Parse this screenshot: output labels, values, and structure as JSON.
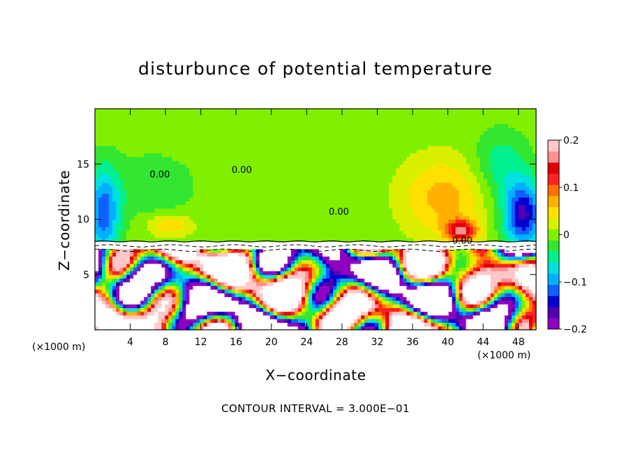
{
  "colors": {
    "positive_strong": "#ff3030",
    "positive_light": "#ffe000",
    "zero_band": "#32e632",
    "negative_light": "#00c8ff",
    "negative_strong": "#2020e0",
    "out_of_range": "#ffffff",
    "contour_line": "#000000"
  },
  "chart_data": {
    "type": "heatmap",
    "title": "disturbunce of potential temperature",
    "xlabel": "X−coordinate",
    "ylabel": "Z−coordinate",
    "x_unit_left": "(×1000 m)",
    "x_unit_right": "(×1000 m)",
    "xlim": [
      0,
      50
    ],
    "ylim": [
      0,
      20
    ],
    "xticks": [
      "4",
      "8",
      "12",
      "16",
      "20",
      "24",
      "28",
      "32",
      "36",
      "40",
      "44",
      "48"
    ],
    "yticks": [
      "5",
      "10",
      "15"
    ],
    "colorbar": {
      "range": [
        -0.2,
        0.2
      ],
      "tick_labels": [
        "0.2",
        "0.1",
        "0",
        "−0.1",
        "−0.2"
      ],
      "colors": [
        "#9000c0",
        "#5000b0",
        "#0000d0",
        "#1060ff",
        "#00b0ff",
        "#00e0e0",
        "#00f090",
        "#32e632",
        "#80f000",
        "#d8f000",
        "#ffe000",
        "#ffb000",
        "#ff7000",
        "#ff2020",
        "#e00000",
        "#ff9090",
        "#ffc8c8"
      ]
    },
    "zero_contour_label": "0.00",
    "contour_interval": "CONTOUR INTERVAL = 3.000E−01",
    "features": [
      {
        "x": 6.5,
        "z": 13.0,
        "value": -0.03,
        "sigma_x": 5.0,
        "sigma_z": 3.0
      },
      {
        "x": 8.5,
        "z": 9.5,
        "value": 0.06,
        "sigma_x": 2.5,
        "sigma_z": 1.0
      },
      {
        "x": 1.0,
        "z": 10.5,
        "value": -0.12,
        "sigma_x": 1.8,
        "sigma_z": 4.0
      },
      {
        "x": 39.5,
        "z": 12.0,
        "value": 0.07,
        "sigma_x": 4.5,
        "sigma_z": 3.5
      },
      {
        "x": 41.5,
        "z": 9.0,
        "value": 0.15,
        "sigma_x": 1.8,
        "sigma_z": 1.0
      },
      {
        "x": 48.5,
        "z": 10.5,
        "value": -0.16,
        "sigma_x": 2.2,
        "sigma_z": 3.0
      },
      {
        "x": 46.0,
        "z": 15.0,
        "value": -0.05,
        "sigma_x": 3.0,
        "sigma_z": 3.0
      },
      {
        "x": 25.0,
        "z": 15.0,
        "value": 0.005,
        "sigma_x": 8.0,
        "sigma_z": 5.0
      }
    ],
    "interface_height": 8.0
  }
}
